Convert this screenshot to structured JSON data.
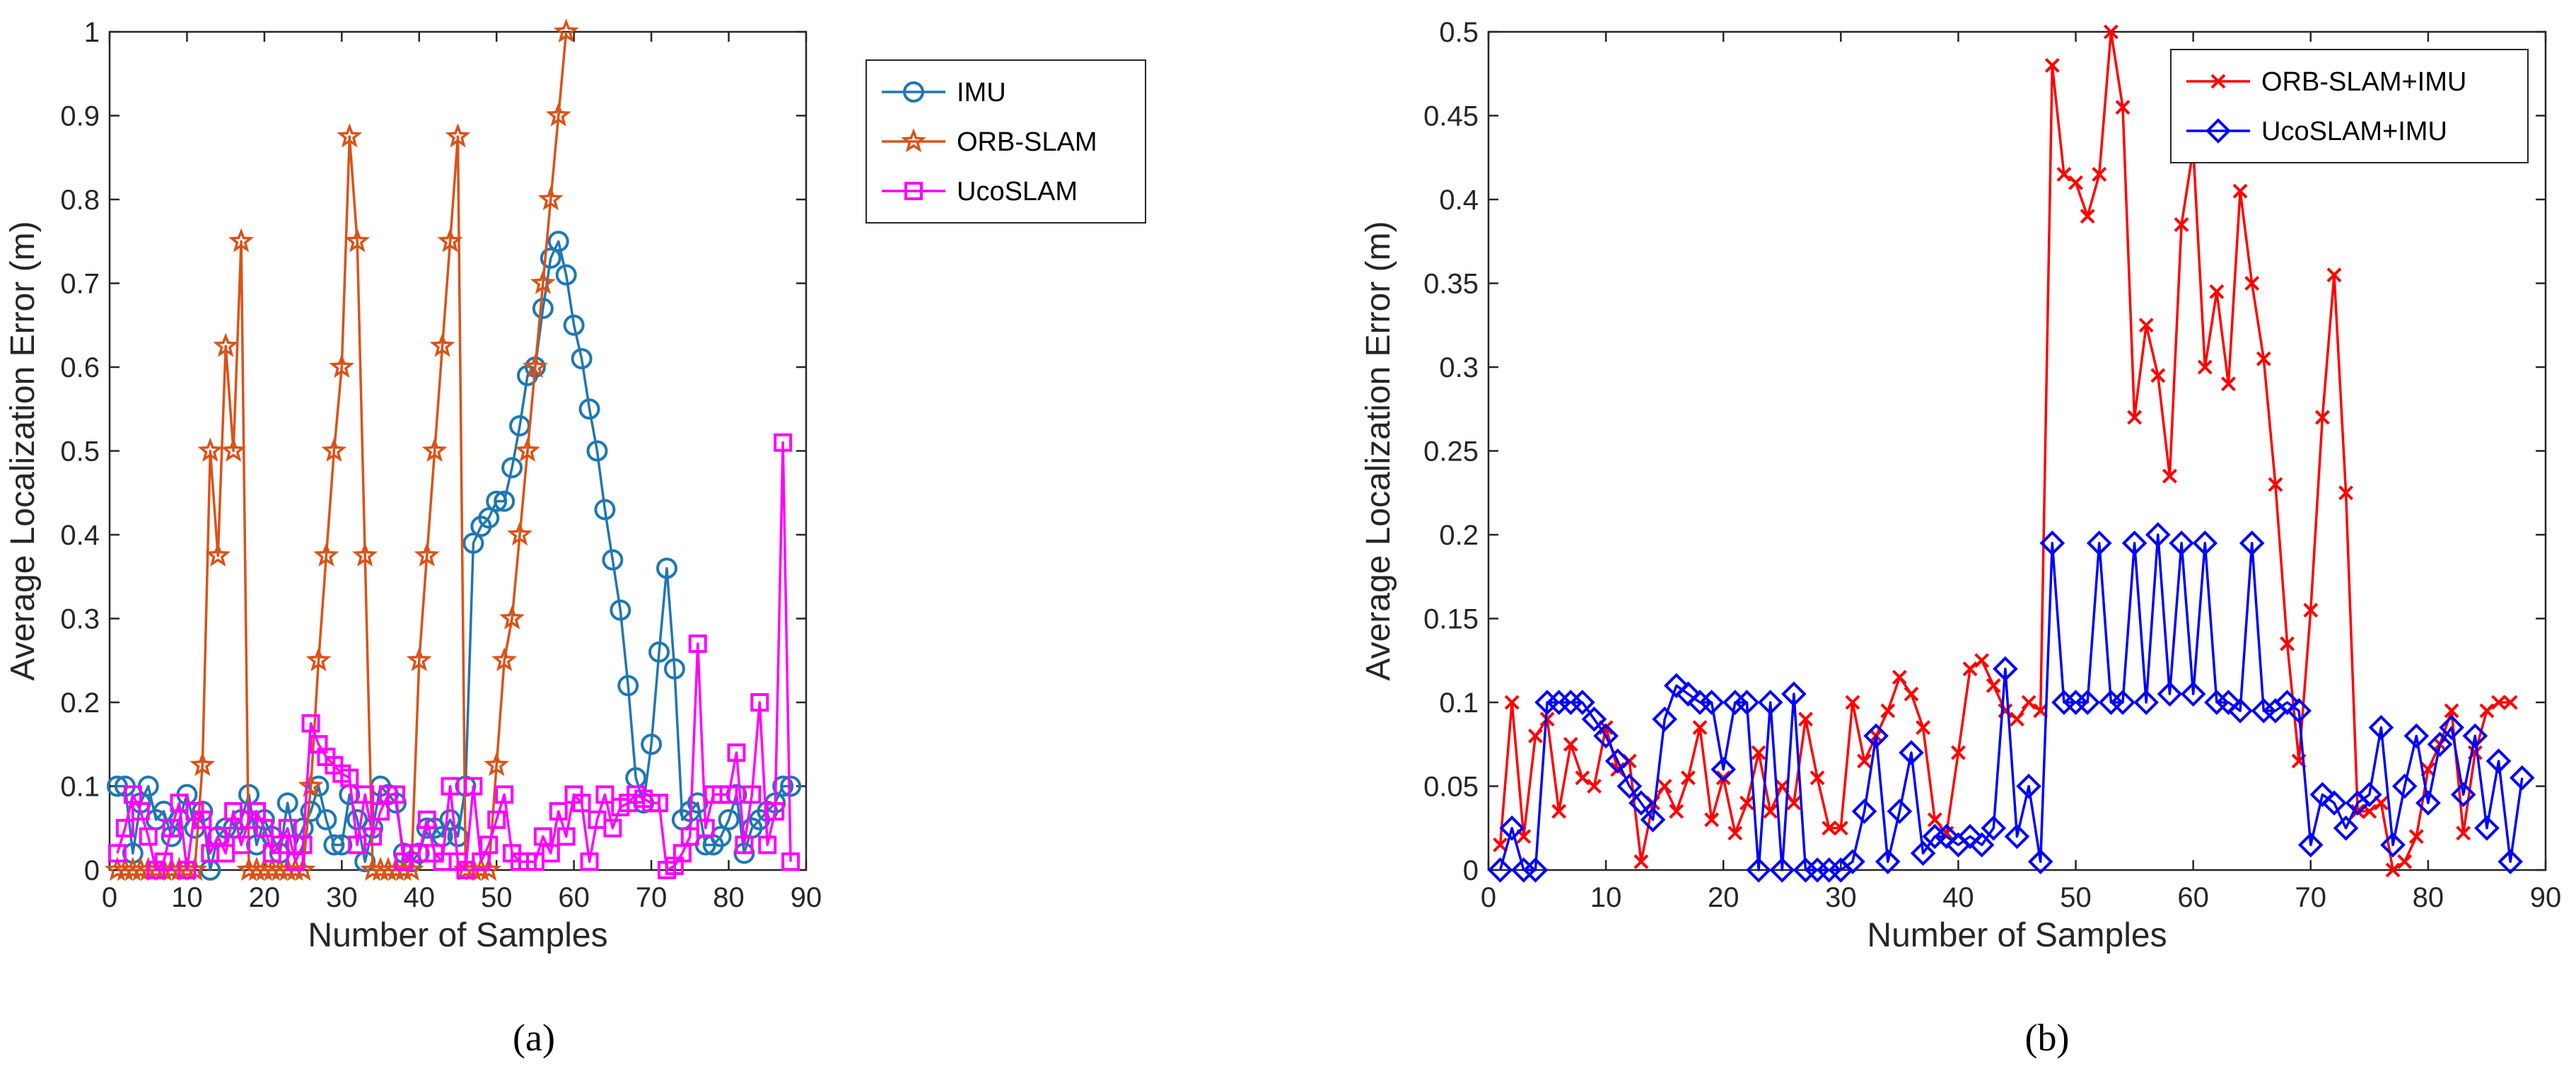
{
  "chart_data": [
    {
      "type": "line",
      "caption": "(a)",
      "xlabel": "Number of Samples",
      "ylabel": "Average Localization Error (m)",
      "xlim": [
        0,
        90
      ],
      "ylim": [
        0,
        1
      ],
      "xticks": [
        "0",
        "10",
        "20",
        "30",
        "40",
        "50",
        "60",
        "70",
        "80",
        "90"
      ],
      "yticks": [
        "0",
        "0.1",
        "0.2",
        "0.3",
        "0.4",
        "0.5",
        "0.6",
        "0.7",
        "0.8",
        "0.9",
        "1"
      ],
      "legend_position": "top-right",
      "series": [
        {
          "name": "IMU",
          "color": "#1f77b4",
          "marker": "circle",
          "x": [
            1,
            2,
            3,
            4,
            5,
            6,
            7,
            8,
            9,
            10,
            11,
            12,
            13,
            14,
            15,
            16,
            17,
            18,
            19,
            20,
            21,
            22,
            23,
            24,
            25,
            26,
            27,
            28,
            29,
            30,
            31,
            32,
            33,
            34,
            35,
            36,
            37,
            38,
            39,
            40,
            41,
            42,
            43,
            44,
            45,
            46,
            47,
            48,
            49,
            50,
            51,
            52,
            53,
            54,
            55,
            56,
            57,
            58,
            59,
            60,
            61,
            62,
            63,
            64,
            65,
            66,
            67,
            68,
            69,
            70,
            71,
            72,
            73,
            74,
            75,
            76,
            77,
            78,
            79,
            80,
            81,
            82,
            83,
            84,
            85,
            86,
            87,
            88
          ],
          "y": [
            0.1,
            0.1,
            0.02,
            0.08,
            0.1,
            0.06,
            0.07,
            0.04,
            0.06,
            0.09,
            0.05,
            0.07,
            0.0,
            0.04,
            0.05,
            0.05,
            0.06,
            0.09,
            0.03,
            0.06,
            0.04,
            0.02,
            0.08,
            0.03,
            0.05,
            0.07,
            0.1,
            0.06,
            0.03,
            0.03,
            0.09,
            0.06,
            0.01,
            0.05,
            0.1,
            0.09,
            0.08,
            0.02,
            0.01,
            0.02,
            0.05,
            0.05,
            0.04,
            0.06,
            0.04,
            0.1,
            0.39,
            0.41,
            0.42,
            0.44,
            0.44,
            0.48,
            0.53,
            0.59,
            0.6,
            0.67,
            0.73,
            0.75,
            0.71,
            0.65,
            0.61,
            0.55,
            0.5,
            0.43,
            0.37,
            0.31,
            0.22,
            0.11,
            0.08,
            0.15,
            0.26,
            0.36,
            0.24,
            0.06,
            0.07,
            0.08,
            0.03,
            0.03,
            0.04,
            0.06,
            0.09,
            0.02,
            0.05,
            0.06,
            0.07,
            0.08,
            0.1,
            0.1
          ]
        },
        {
          "name": "ORB-SLAM",
          "color": "#d95319",
          "marker": "star",
          "x": [
            1,
            2,
            3,
            4,
            5,
            6,
            7,
            8,
            9,
            10,
            11,
            12,
            13,
            14,
            15,
            16,
            17,
            18,
            19,
            20,
            21,
            22,
            23,
            24,
            25,
            26,
            27,
            28,
            29,
            30,
            31,
            32,
            33,
            34,
            35,
            36,
            37,
            38,
            39,
            40,
            41,
            42,
            43,
            44,
            45,
            46,
            47,
            48,
            49,
            50,
            51,
            52,
            53,
            54,
            55,
            56,
            57,
            58,
            59
          ],
          "y": [
            0,
            0,
            0,
            0,
            0,
            0,
            0,
            0,
            0,
            0,
            0,
            0.125,
            0.5,
            0.375,
            0.625,
            0.5,
            0.75,
            0,
            0,
            0,
            0,
            0,
            0,
            0,
            0,
            0.1,
            0.25,
            0.375,
            0.5,
            0.6,
            0.875,
            0.75,
            0.375,
            0,
            0,
            0,
            0,
            0,
            0,
            0.25,
            0.375,
            0.5,
            0.625,
            0.75,
            0.875,
            0,
            0,
            0,
            0,
            0.125,
            0.25,
            0.3,
            0.4,
            0.5,
            0.6,
            0.7,
            0.8,
            0.9,
            1.0
          ]
        },
        {
          "name": "UcoSLAM",
          "color": "#ff00ff",
          "marker": "square",
          "x": [
            1,
            2,
            3,
            4,
            5,
            6,
            7,
            8,
            9,
            10,
            11,
            12,
            13,
            14,
            15,
            16,
            17,
            18,
            19,
            20,
            21,
            22,
            23,
            24,
            25,
            26,
            27,
            28,
            29,
            30,
            31,
            32,
            33,
            34,
            35,
            36,
            37,
            38,
            39,
            40,
            41,
            42,
            43,
            44,
            45,
            46,
            47,
            48,
            49,
            50,
            51,
            52,
            53,
            54,
            55,
            56,
            57,
            58,
            59,
            60,
            61,
            62,
            63,
            64,
            65,
            66,
            67,
            68,
            69,
            70,
            71,
            72,
            73,
            74,
            75,
            76,
            77,
            78,
            79,
            80,
            81,
            82,
            83,
            84,
            85,
            86,
            87,
            88
          ],
          "y": [
            0.02,
            0.05,
            0.09,
            0.07,
            0.04,
            0.0,
            0.01,
            0.05,
            0.08,
            0.0,
            0.07,
            0.06,
            0.02,
            0.04,
            0.02,
            0.07,
            0.03,
            0.06,
            0.07,
            0.05,
            0.02,
            0.03,
            0.05,
            0.01,
            0.03,
            0.175,
            0.15,
            0.135,
            0.125,
            0.115,
            0.11,
            0.03,
            0.09,
            0.04,
            0.07,
            0.09,
            0.09,
            0.01,
            0.02,
            0.02,
            0.06,
            0.02,
            0.01,
            0.1,
            0.01,
            0.0,
            0.1,
            0.01,
            0.03,
            0.06,
            0.09,
            0.02,
            0.01,
            0.01,
            0.01,
            0.04,
            0.02,
            0.07,
            0.04,
            0.09,
            0.08,
            0.01,
            0.06,
            0.09,
            0.05,
            0.075,
            0.08,
            0.09,
            0.085,
            0.08,
            0.08,
            0.0,
            0.005,
            0.02,
            0.04,
            0.27,
            0.05,
            0.09,
            0.09,
            0.09,
            0.14,
            0.03,
            0.09,
            0.2,
            0.03,
            0.07,
            0.51,
            0.01
          ]
        }
      ]
    },
    {
      "type": "line",
      "caption": "(b)",
      "xlabel": "Number of Samples",
      "ylabel": "Average Localization Error (m)",
      "xlim": [
        0,
        90
      ],
      "ylim": [
        0,
        0.5
      ],
      "xticks": [
        "0",
        "10",
        "20",
        "30",
        "40",
        "50",
        "60",
        "70",
        "80",
        "90"
      ],
      "yticks": [
        "0",
        "0.05",
        "0.1",
        "0.15",
        "0.2",
        "0.25",
        "0.3",
        "0.35",
        "0.4",
        "0.45",
        "0.5"
      ],
      "legend_position": "top-right",
      "series": [
        {
          "name": "ORB-SLAM+IMU",
          "color": "#ff0000",
          "marker": "x",
          "x": [
            1,
            2,
            3,
            4,
            5,
            6,
            7,
            8,
            9,
            10,
            11,
            12,
            13,
            14,
            15,
            16,
            17,
            18,
            19,
            20,
            21,
            22,
            23,
            24,
            25,
            26,
            27,
            28,
            29,
            30,
            31,
            32,
            33,
            34,
            35,
            36,
            37,
            38,
            39,
            40,
            41,
            42,
            43,
            44,
            45,
            46,
            47,
            48,
            49,
            50,
            51,
            52,
            53,
            54,
            55,
            56,
            57,
            58,
            59,
            60,
            61,
            62,
            63,
            64,
            65,
            66,
            67,
            68,
            69,
            70,
            71,
            72,
            73,
            74,
            75,
            76,
            77,
            78,
            79,
            80,
            81,
            82,
            83,
            84,
            85,
            86,
            87
          ],
          "y": [
            0.015,
            0.1,
            0.02,
            0.08,
            0.09,
            0.035,
            0.075,
            0.055,
            0.05,
            0.085,
            0.06,
            0.065,
            0.005,
            0.04,
            0.05,
            0.035,
            0.055,
            0.085,
            0.03,
            0.055,
            0.022,
            0.04,
            0.07,
            0.035,
            0.05,
            0.04,
            0.09,
            0.055,
            0.025,
            0.025,
            0.1,
            0.065,
            0.08,
            0.095,
            0.115,
            0.105,
            0.085,
            0.03,
            0.022,
            0.07,
            0.12,
            0.125,
            0.11,
            0.095,
            0.09,
            0.1,
            0.095,
            0.48,
            0.415,
            0.41,
            0.39,
            0.415,
            0.5,
            0.455,
            0.27,
            0.325,
            0.295,
            0.235,
            0.385,
            0.43,
            0.3,
            0.345,
            0.29,
            0.405,
            0.35,
            0.305,
            0.23,
            0.135,
            0.065,
            0.155,
            0.27,
            0.355,
            0.225,
            0.035,
            0.035,
            0.04,
            0.0,
            0.005,
            0.02,
            0.06,
            0.075,
            0.095,
            0.022,
            0.07,
            0.095,
            0.1,
            0.1
          ]
        },
        {
          "name": "UcoSLAM+IMU",
          "color": "#0000ff",
          "marker": "diamond",
          "x": [
            1,
            2,
            3,
            4,
            5,
            6,
            7,
            8,
            9,
            10,
            11,
            12,
            13,
            14,
            15,
            16,
            17,
            18,
            19,
            20,
            21,
            22,
            23,
            24,
            25,
            26,
            27,
            28,
            29,
            30,
            31,
            32,
            33,
            34,
            35,
            36,
            37,
            38,
            39,
            40,
            41,
            42,
            43,
            44,
            45,
            46,
            47,
            48,
            49,
            50,
            51,
            52,
            53,
            54,
            55,
            56,
            57,
            58,
            59,
            60,
            61,
            62,
            63,
            64,
            65,
            66,
            67,
            68,
            69,
            70,
            71,
            72,
            73,
            74,
            75,
            76,
            77,
            78,
            79,
            80,
            81,
            82,
            83,
            84,
            85,
            86,
            87,
            88
          ],
          "y": [
            0.0,
            0.025,
            0.0,
            0.0,
            0.1,
            0.1,
            0.1,
            0.1,
            0.09,
            0.08,
            0.065,
            0.05,
            0.04,
            0.03,
            0.09,
            0.11,
            0.105,
            0.1,
            0.1,
            0.06,
            0.1,
            0.1,
            0.0,
            0.1,
            0.0,
            0.105,
            0.0,
            0.0,
            0.0,
            0.0,
            0.005,
            0.035,
            0.08,
            0.005,
            0.035,
            0.07,
            0.01,
            0.02,
            0.02,
            0.015,
            0.02,
            0.015,
            0.025,
            0.12,
            0.02,
            0.05,
            0.005,
            0.195,
            0.1,
            0.1,
            0.1,
            0.195,
            0.1,
            0.1,
            0.195,
            0.1,
            0.2,
            0.105,
            0.195,
            0.105,
            0.195,
            0.1,
            0.1,
            0.095,
            0.195,
            0.095,
            0.095,
            0.1,
            0.095,
            0.015,
            0.045,
            0.04,
            0.025,
            0.04,
            0.045,
            0.085,
            0.015,
            0.05,
            0.08,
            0.04,
            0.075,
            0.085,
            0.045,
            0.08,
            0.025,
            0.065,
            0.005,
            0.055
          ]
        }
      ]
    }
  ]
}
